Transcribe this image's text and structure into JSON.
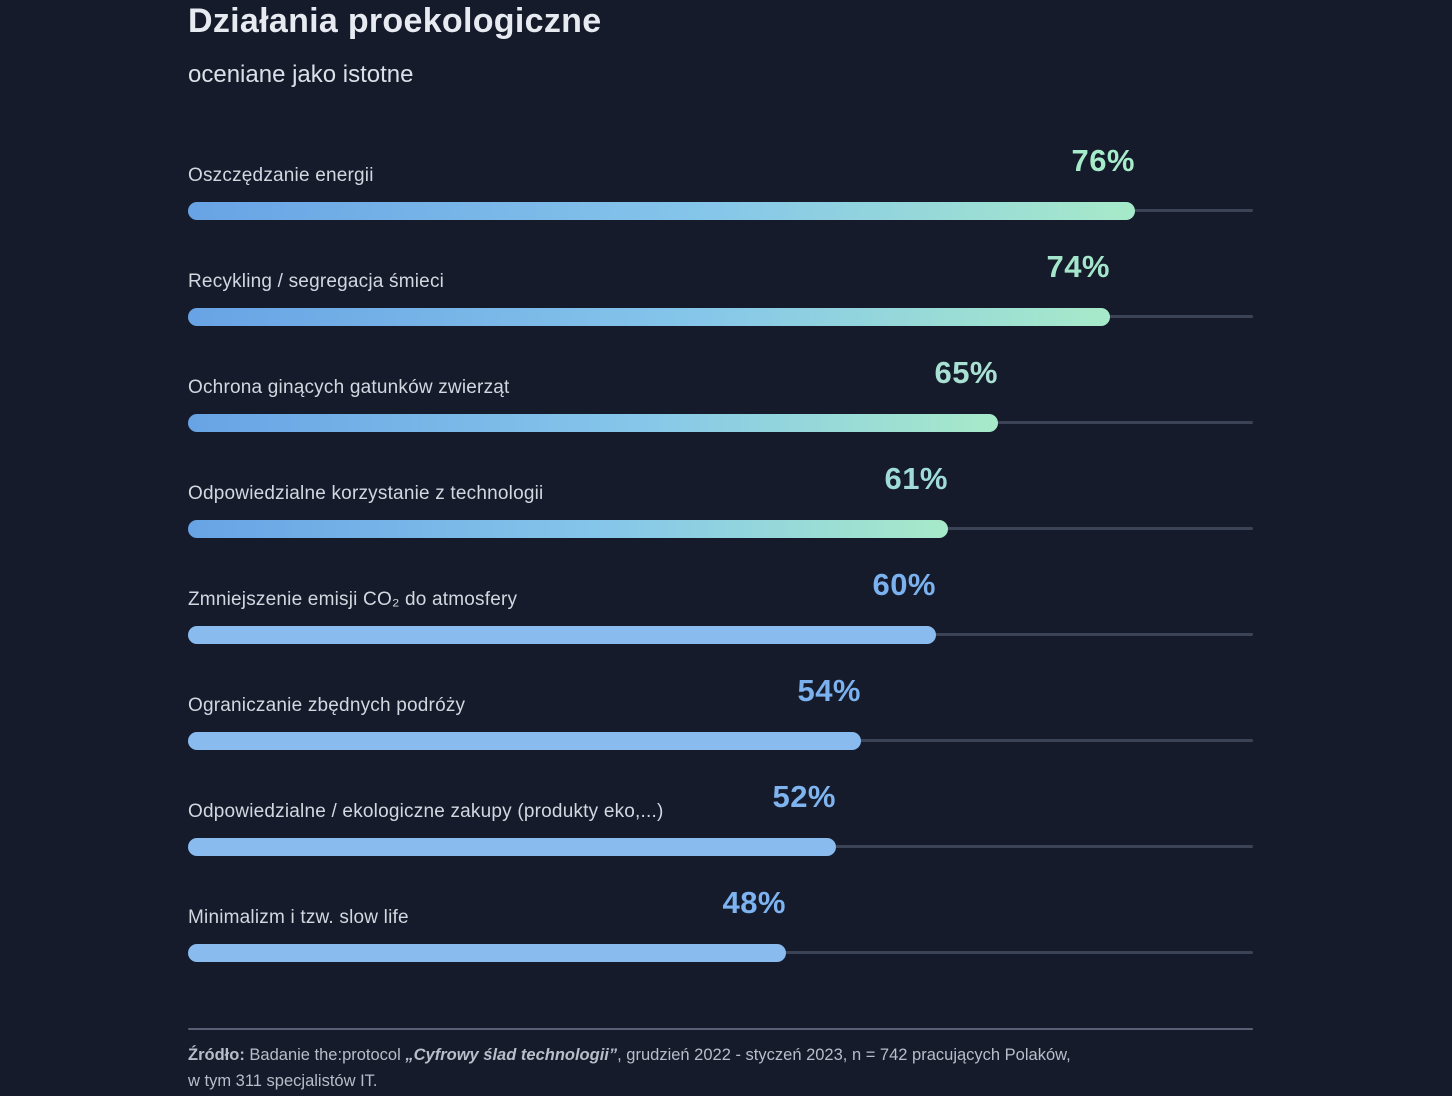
{
  "title": "Działania proekologiczne",
  "subtitle": "oceniane jako istotne",
  "colors": {
    "background": "#151b2b",
    "title": "#e7eaf0",
    "subtitle": "#dbe0e8",
    "category_label": "#d2d8e0",
    "track": "#3b4457",
    "divider": "#565f73",
    "footer_text": "#b7bec9",
    "bar_gradient_start": "#68a3e5",
    "bar_gradient_mid": "#85c6ea",
    "bar_gradient_end": "#a7eac9",
    "bar_solid": "#89bbee"
  },
  "chart": {
    "items": [
      {
        "label": "Oszczędzanie energii",
        "value": 76,
        "display": "76%",
        "bar_style": "gradient",
        "value_color": "#a6ebca"
      },
      {
        "label": "Recykling / segregacja śmieci",
        "value": 74,
        "display": "74%",
        "bar_style": "gradient",
        "value_color": "#a4e6cb"
      },
      {
        "label": "Ochrona ginących gatunków zwierząt",
        "value": 65,
        "display": "65%",
        "bar_style": "gradient",
        "value_color": "#a8e1d3"
      },
      {
        "label": "Odpowiedzialne korzystanie z technologii",
        "value": 61,
        "display": "61%",
        "bar_style": "gradient",
        "value_color": "#9fdbd8"
      },
      {
        "label": "Zmniejszenie emisji CO₂ do atmosfery",
        "value": 60,
        "display": "60%",
        "bar_style": "solid",
        "value_color": "#7cb1ef"
      },
      {
        "label": "Ograniczanie zbędnych podróży",
        "value": 54,
        "display": "54%",
        "bar_style": "solid",
        "value_color": "#7cb1ef"
      },
      {
        "label": "Odpowiedzialne / ekologiczne zakupy (produkty eko,...)",
        "value": 52,
        "display": "52%",
        "bar_style": "solid",
        "value_color": "#7fb4f0"
      },
      {
        "label": "Minimalizm i tzw. slow life",
        "value": 48,
        "display": "48%",
        "bar_style": "solid",
        "value_color": "#7cb3f0"
      }
    ]
  },
  "chart_data": {
    "type": "bar",
    "orientation": "horizontal",
    "title": "Działania proekologiczne",
    "subtitle": "oceniane jako istotne",
    "categories": [
      "Oszczędzanie energii",
      "Recykling / segregacja śmieci",
      "Ochrona ginących gatunków zwierząt",
      "Odpowiedzialne korzystanie z technologii",
      "Zmniejszenie emisji CO₂ do atmosfery",
      "Ograniczanie zbędnych podróży",
      "Odpowiedzialne / ekologiczne zakupy (produkty eko,...)",
      "Minimalizm i tzw. slow life"
    ],
    "values": [
      76,
      74,
      65,
      61,
      60,
      54,
      52,
      48
    ],
    "unit": "%",
    "xlim": [
      0,
      100
    ],
    "grid": false,
    "legend": "none",
    "data_labels": [
      "76%",
      "74%",
      "65%",
      "61%",
      "60%",
      "54%",
      "52%",
      "48%"
    ],
    "annotation": "Źródło: Badanie the:protocol „Cyfrowy ślad technologii”, grudzień 2022 - styczeń 2023, n = 742 pracujących Polaków, w tym 311 specjalistów IT."
  },
  "footer": {
    "lines": [
      {
        "segments": [
          {
            "text": "Źródło:",
            "style": "bold"
          },
          {
            "text": " Badanie the:protocol ",
            "style": "normal"
          },
          {
            "text": "„Cyfrowy ślad technologii”",
            "style": "bold-italic"
          },
          {
            "text": ", grudzień 2022 - styczeń 2023, n = 742 pracujących Polaków,",
            "style": "normal"
          }
        ]
      },
      {
        "segments": [
          {
            "text": "w tym 311 specjalistów IT.",
            "style": "normal"
          }
        ]
      }
    ]
  }
}
